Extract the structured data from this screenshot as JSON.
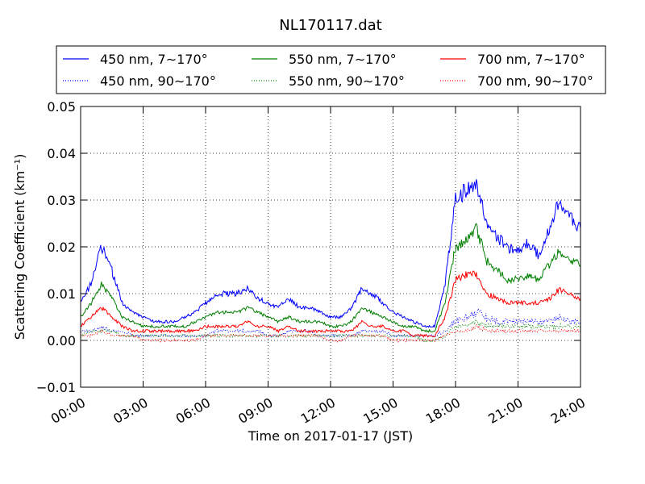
{
  "chart_data": {
    "type": "line",
    "title": "NL170117.dat",
    "xlabel": "Time on 2017-01-17 (JST)",
    "ylabel": "Scattering Coefficient (km⁻¹)",
    "xlim": [
      "00:00",
      "24:00"
    ],
    "ylim": [
      -0.01,
      0.05
    ],
    "grid": true,
    "legend_position": "top",
    "x_ticks": [
      "00:00",
      "03:00",
      "06:00",
      "09:00",
      "12:00",
      "15:00",
      "18:00",
      "21:00",
      "24:00"
    ],
    "y_ticks": [
      "−0.01",
      "0.00",
      "0.01",
      "0.02",
      "0.03",
      "0.04",
      "0.05"
    ],
    "x": [
      "00:00",
      "00:30",
      "01:00",
      "01:30",
      "02:00",
      "02:30",
      "03:00",
      "03:30",
      "04:00",
      "04:30",
      "05:00",
      "05:30",
      "06:00",
      "06:30",
      "07:00",
      "07:30",
      "08:00",
      "08:30",
      "09:00",
      "09:30",
      "10:00",
      "10:30",
      "11:00",
      "11:30",
      "12:00",
      "12:30",
      "13:00",
      "13:30",
      "14:00",
      "14:30",
      "15:00",
      "15:30",
      "16:00",
      "16:30",
      "17:00",
      "17:30",
      "18:00",
      "18:30",
      "19:00",
      "19:30",
      "20:00",
      "20:30",
      "21:00",
      "21:30",
      "22:00",
      "22:30",
      "23:00",
      "23:30",
      "24:00"
    ],
    "series": [
      {
        "name": "450 nm, 7∼170°",
        "color": "#0000ff",
        "style": "solid",
        "values": [
          0.008,
          0.012,
          0.02,
          0.015,
          0.008,
          0.006,
          0.005,
          0.004,
          0.004,
          0.004,
          0.005,
          0.006,
          0.008,
          0.01,
          0.01,
          0.01,
          0.011,
          0.009,
          0.008,
          0.007,
          0.009,
          0.007,
          0.007,
          0.006,
          0.005,
          0.005,
          0.007,
          0.011,
          0.01,
          0.008,
          0.006,
          0.005,
          0.004,
          0.003,
          0.003,
          0.012,
          0.03,
          0.032,
          0.034,
          0.025,
          0.022,
          0.02,
          0.019,
          0.021,
          0.018,
          0.024,
          0.03,
          0.026,
          0.024
        ]
      },
      {
        "name": "450 nm, 90∼170°",
        "color": "#0000ff",
        "style": "dotted",
        "values": [
          0.002,
          0.002,
          0.003,
          0.002,
          0.002,
          0.001,
          0.001,
          0.001,
          0.001,
          0.001,
          0.001,
          0.001,
          0.001,
          0.002,
          0.002,
          0.002,
          0.002,
          0.002,
          0.001,
          0.001,
          0.002,
          0.002,
          0.002,
          0.001,
          0.001,
          0.001,
          0.001,
          0.002,
          0.002,
          0.002,
          0.001,
          0.001,
          0.001,
          0.001,
          0.001,
          0.002,
          0.004,
          0.005,
          0.006,
          0.005,
          0.004,
          0.004,
          0.004,
          0.004,
          0.004,
          0.004,
          0.005,
          0.004,
          0.004
        ]
      },
      {
        "name": "550 nm, 7∼170°",
        "color": "#008000",
        "style": "solid",
        "values": [
          0.005,
          0.008,
          0.012,
          0.009,
          0.005,
          0.004,
          0.003,
          0.003,
          0.003,
          0.003,
          0.003,
          0.004,
          0.005,
          0.006,
          0.006,
          0.006,
          0.007,
          0.006,
          0.005,
          0.004,
          0.005,
          0.004,
          0.004,
          0.004,
          0.003,
          0.003,
          0.004,
          0.007,
          0.006,
          0.005,
          0.004,
          0.003,
          0.003,
          0.002,
          0.002,
          0.008,
          0.02,
          0.021,
          0.024,
          0.017,
          0.015,
          0.013,
          0.013,
          0.014,
          0.013,
          0.016,
          0.019,
          0.017,
          0.016
        ]
      },
      {
        "name": "550 nm, 90∼170°",
        "color": "#008000",
        "style": "dotted",
        "values": [
          0.001,
          0.002,
          0.002,
          0.002,
          0.001,
          0.001,
          0.001,
          0.001,
          0.001,
          0.001,
          0.001,
          0.001,
          0.001,
          0.001,
          0.001,
          0.001,
          0.001,
          0.001,
          0.001,
          0.001,
          0.001,
          0.001,
          0.001,
          0.001,
          0.001,
          0.001,
          0.001,
          0.001,
          0.001,
          0.001,
          0.001,
          0.001,
          0.001,
          0.0,
          0.0,
          0.001,
          0.003,
          0.003,
          0.004,
          0.003,
          0.003,
          0.003,
          0.003,
          0.003,
          0.003,
          0.003,
          0.003,
          0.003,
          0.003
        ]
      },
      {
        "name": "700 nm, 7∼170°",
        "color": "#ff0000",
        "style": "solid",
        "values": [
          0.003,
          0.005,
          0.007,
          0.005,
          0.003,
          0.002,
          0.002,
          0.002,
          0.002,
          0.002,
          0.002,
          0.002,
          0.003,
          0.003,
          0.003,
          0.003,
          0.004,
          0.003,
          0.003,
          0.002,
          0.003,
          0.002,
          0.002,
          0.002,
          0.002,
          0.002,
          0.002,
          0.004,
          0.003,
          0.003,
          0.002,
          0.002,
          0.001,
          0.001,
          0.001,
          0.005,
          0.013,
          0.014,
          0.014,
          0.01,
          0.009,
          0.008,
          0.008,
          0.008,
          0.008,
          0.009,
          0.011,
          0.01,
          0.009
        ]
      },
      {
        "name": "700 nm, 90∼170°",
        "color": "#ff0000",
        "style": "dotted",
        "values": [
          0.001,
          0.001,
          0.002,
          0.001,
          0.001,
          0.001,
          0.0,
          0.0,
          0.0,
          0.0,
          0.0,
          0.0,
          0.001,
          0.001,
          0.001,
          0.001,
          0.001,
          0.001,
          0.001,
          0.001,
          0.001,
          0.001,
          0.001,
          0.001,
          0.0,
          0.0,
          0.001,
          0.001,
          0.001,
          0.001,
          0.0,
          0.0,
          0.0,
          0.0,
          0.0,
          0.001,
          0.002,
          0.002,
          0.003,
          0.002,
          0.002,
          0.002,
          0.002,
          0.002,
          0.002,
          0.002,
          0.002,
          0.002,
          0.002
        ]
      }
    ]
  }
}
